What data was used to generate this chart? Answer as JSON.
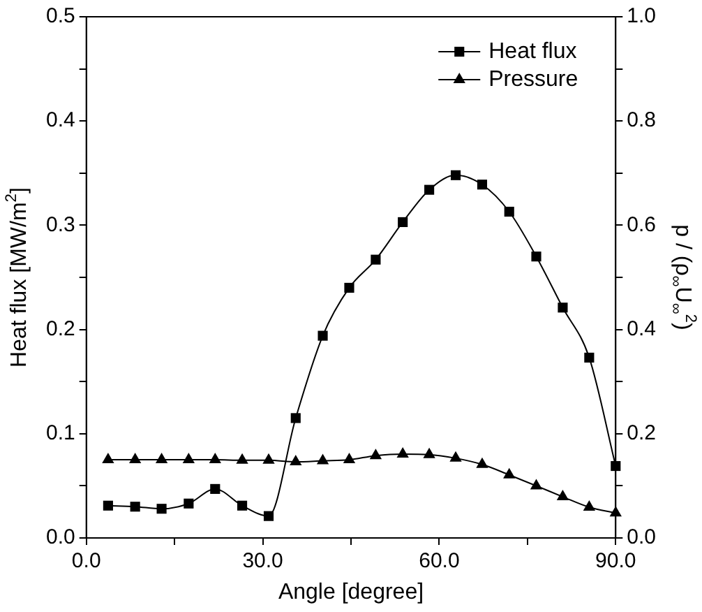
{
  "chart_data": {
    "type": "line",
    "xlabel": "Angle [degree]",
    "ylabel": "Heat flux [MW/m$^{2}$]",
    "y2label": "p / (ρ$_{∞}$U$_{∞}$$^{2}$)",
    "x": [
      3.7,
      8.3,
      12.8,
      17.4,
      21.9,
      26.5,
      31,
      35.6,
      40.2,
      44.7,
      49.2,
      53.8,
      58.3,
      62.8,
      67.3,
      71.9,
      76.5,
      81,
      85.5,
      90
    ],
    "series": [
      {
        "name": "Heat flux",
        "color": "#000000",
        "marker": "square",
        "values": [
          0.031,
          0.03,
          0.028,
          0.033,
          0.047,
          0.031,
          0.021,
          0.115,
          0.194,
          0.24,
          0.267,
          0.303,
          0.334,
          0.348,
          0.339,
          0.313,
          0.27,
          0.221,
          0.173,
          0.069
        ]
      },
      {
        "name": "Pressure",
        "color": "#000000",
        "marker": "triangle",
        "axis": "y2",
        "values": [
          0.15,
          0.15,
          0.15,
          0.15,
          0.15,
          0.149,
          0.149,
          0.146,
          0.148,
          0.15,
          0.158,
          0.161,
          0.16,
          0.153,
          0.141,
          0.121,
          0.1,
          0.079,
          0.059,
          0.048
        ]
      }
    ],
    "xlim": [
      0,
      90
    ],
    "xticks": [
      {
        "value": 0,
        "label": "0.0"
      },
      {
        "value": 15,
        "label": null
      },
      {
        "value": 30,
        "label": "30.0"
      },
      {
        "value": 45,
        "label": null
      },
      {
        "value": 60,
        "label": "60.0"
      },
      {
        "value": 75,
        "label": null
      },
      {
        "value": 90,
        "label": "90.0"
      }
    ],
    "ylim": [
      0,
      0.5
    ],
    "yticks": [
      {
        "value": 0,
        "label": "0.0"
      },
      {
        "value": 0.05,
        "label": null
      },
      {
        "value": 0.1,
        "label": "0.1"
      },
      {
        "value": 0.15,
        "label": null
      },
      {
        "value": 0.2,
        "label": "0.2"
      },
      {
        "value": 0.25,
        "label": null
      },
      {
        "value": 0.3,
        "label": "0.3"
      },
      {
        "value": 0.35,
        "label": null
      },
      {
        "value": 0.4,
        "label": "0.4"
      },
      {
        "value": 0.45,
        "label": null
      },
      {
        "value": 0.5,
        "label": "0.5"
      }
    ],
    "y2lim": [
      0,
      1
    ],
    "y2ticks": [
      {
        "value": 0,
        "label": "0.0"
      },
      {
        "value": 0.1,
        "label": null
      },
      {
        "value": 0.2,
        "label": "0.2"
      },
      {
        "value": 0.3,
        "label": null
      },
      {
        "value": 0.4,
        "label": "0.4"
      },
      {
        "value": 0.5,
        "label": null
      },
      {
        "value": 0.6,
        "label": "0.6"
      },
      {
        "value": 0.7,
        "label": null
      },
      {
        "value": 0.8,
        "label": "0.8"
      },
      {
        "value": 0.9,
        "label": null
      },
      {
        "value": 1,
        "label": "1.0"
      }
    ],
    "grid": false,
    "legend": "top right",
    "line_style": "solid"
  }
}
